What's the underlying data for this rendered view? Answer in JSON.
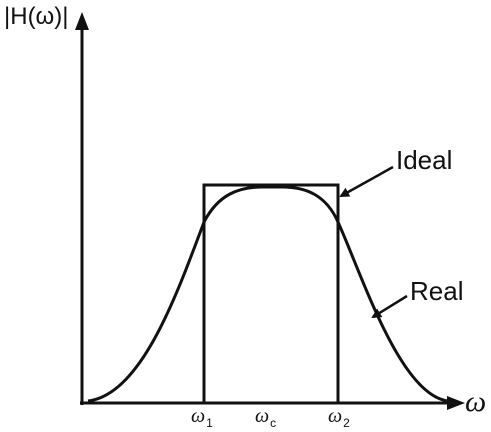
{
  "y_axis_label": "|H(ω)|",
  "x_axis_label": "ω",
  "ticks": {
    "omega_1": {
      "symbol": "ω",
      "subscript": "1"
    },
    "omega_c": {
      "symbol": "ω",
      "subscript": "c"
    },
    "omega_2": {
      "symbol": "ω",
      "subscript": "2"
    }
  },
  "annotations": {
    "ideal": "Ideal",
    "real": "Real"
  },
  "colors": {
    "ink": "#111111",
    "background": "#ffffff"
  }
}
